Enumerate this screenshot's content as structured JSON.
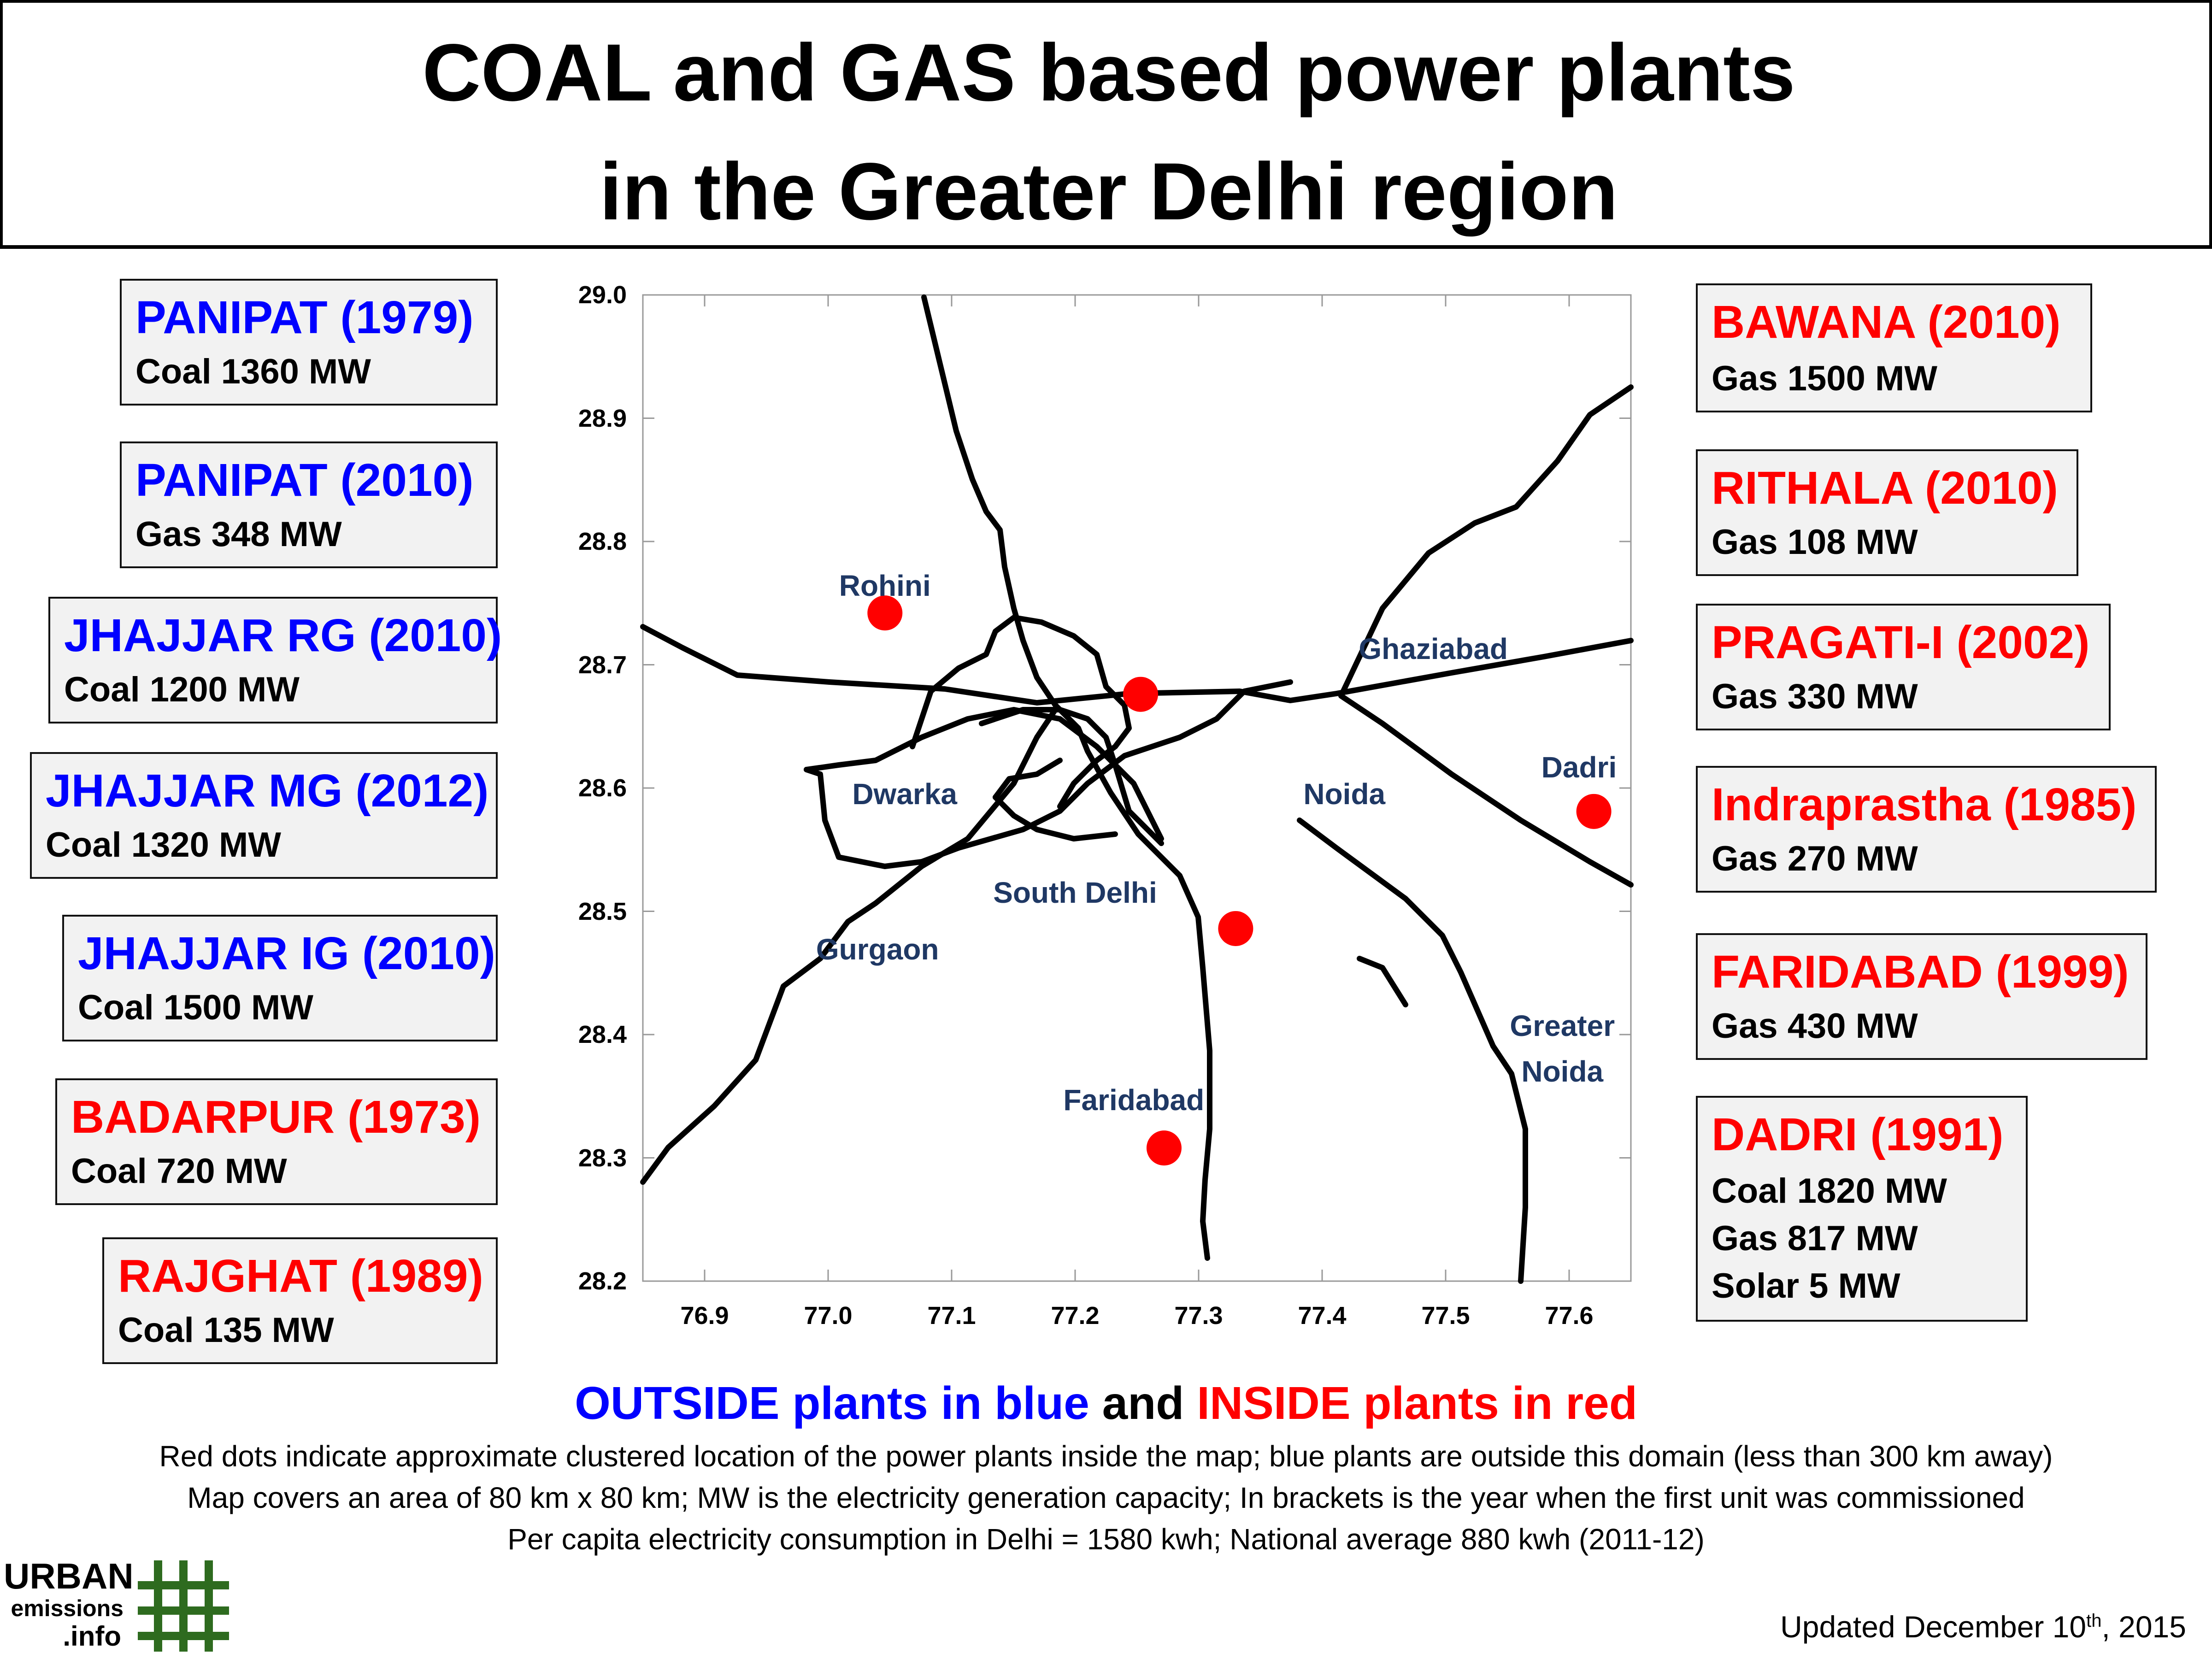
{
  "title": {
    "line1": "COAL and GAS based power plants",
    "line2": "in the Greater Delhi region"
  },
  "left_plants": [
    {
      "name": "PANIPAT (1979)",
      "lines": [
        "Coal 1360 MW"
      ],
      "color": "#0000ff"
    },
    {
      "name": "PANIPAT (2010)",
      "lines": [
        "Gas 348 MW"
      ],
      "color": "#0000ff"
    },
    {
      "name": "JHAJJAR RG (2010)",
      "lines": [
        "Coal 1200 MW"
      ],
      "color": "#0000ff"
    },
    {
      "name": "JHAJJAR MG (2012)",
      "lines": [
        "Coal 1320 MW"
      ],
      "color": "#0000ff"
    },
    {
      "name": "JHAJJAR IG (2010)",
      "lines": [
        "Coal 1500 MW"
      ],
      "color": "#0000ff"
    },
    {
      "name": "BADARPUR (1973)",
      "lines": [
        "Coal 720 MW"
      ],
      "color": "#ff0000"
    },
    {
      "name": "RAJGHAT (1989)",
      "lines": [
        "Coal 135 MW"
      ],
      "color": "#ff0000"
    }
  ],
  "right_plants": [
    {
      "name": "BAWANA (2010)",
      "lines": [
        "Gas 1500 MW"
      ],
      "color": "#ff0000"
    },
    {
      "name": "RITHALA (2010)",
      "lines": [
        "Gas 108 MW"
      ],
      "color": "#ff0000"
    },
    {
      "name": "PRAGATI-I (2002)",
      "lines": [
        "Gas 330 MW"
      ],
      "color": "#ff0000"
    },
    {
      "name": "Indraprastha (1985)",
      "lines": [
        "Gas 270 MW"
      ],
      "color": "#ff0000"
    },
    {
      "name": "FARIDABAD (1999)",
      "lines": [
        "Gas 430 MW"
      ],
      "color": "#ff0000"
    },
    {
      "name": "DADRI (1991)",
      "lines": [
        "Coal 1820 MW",
        "Gas 817 MW",
        "Solar 5 MW"
      ],
      "color": "#ff0000"
    }
  ],
  "map": {
    "x_axis": {
      "min": 76.85,
      "max": 77.65,
      "ticks": [
        "76.9",
        "77.0",
        "77.1",
        "77.2",
        "77.3",
        "77.4",
        "77.5",
        "77.6"
      ]
    },
    "y_axis": {
      "min": 28.2,
      "max": 29.0,
      "ticks": [
        "28.2",
        "28.3",
        "28.4",
        "28.5",
        "28.6",
        "28.7",
        "28.8",
        "28.9",
        "29.0"
      ]
    },
    "place_labels": [
      {
        "name": "Rohini",
        "lon": 77.046,
        "lat": 28.764
      },
      {
        "name": "Ghaziabad",
        "lon": 77.49,
        "lat": 28.713
      },
      {
        "name": "Dadri",
        "lon": 77.608,
        "lat": 28.617
      },
      {
        "name": "Dwarka",
        "lon": 77.062,
        "lat": 28.595
      },
      {
        "name": "Noida",
        "lon": 77.418,
        "lat": 28.595
      },
      {
        "name": "South Delhi",
        "lon": 77.2,
        "lat": 28.515
      },
      {
        "name": "Gurgaon",
        "lon": 77.04,
        "lat": 28.469
      },
      {
        "name": "Greater",
        "lon": 77.5945,
        "lat": 28.407
      },
      {
        "name": "Noida",
        "lon": 77.5945,
        "lat": 28.37
      },
      {
        "name": "Faridabad",
        "lon": 77.2475,
        "lat": 28.347
      }
    ],
    "plant_dots": [
      {
        "lon": 77.046,
        "lat": 28.742
      },
      {
        "lon": 77.253,
        "lat": 28.676
      },
      {
        "lon": 77.33,
        "lat": 28.486
      },
      {
        "lon": 77.62,
        "lat": 28.581
      },
      {
        "lon": 77.272,
        "lat": 28.308
      }
    ],
    "dot_color": "#ff0000",
    "label_color": "#1f3864"
  },
  "legend": {
    "outside": "OUTSIDE plants in blue",
    "and": " and ",
    "inside": "INSIDE plants in red"
  },
  "notes": [
    "Red dots indicate approximate clustered location of the power plants inside the map; blue plants are outside this domain (less than 300 km away)",
    "Map covers an area of 80 km x 80 km; MW is the electricity generation capacity; In brackets is the year when the first unit was commissioned",
    "Per capita electricity consumption in Delhi = 1580 kwh; National average 880 kwh (2011-12)"
  ],
  "updated": {
    "prefix": "Updated December 10",
    "sup": "th",
    "suffix": ", 2015"
  },
  "logo": {
    "line1": "URBAN",
    "line2": "emissions",
    "line3": ".info",
    "color": "#2e6b1f"
  }
}
